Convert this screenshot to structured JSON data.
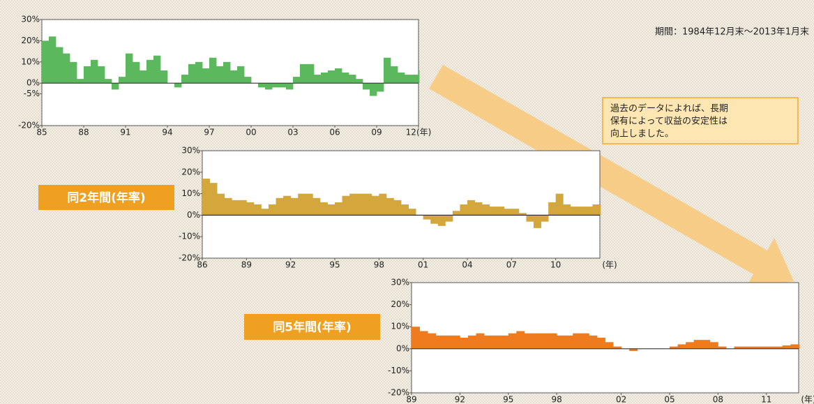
{
  "period": "期間：1984年12月末～2013年1月末",
  "note": [
    "過去のデータによれば、長期",
    "保有によって収益の安定性は",
    "向上しました。"
  ],
  "chart_data": [
    {
      "type": "area",
      "color": "#5cb85c",
      "x": [
        1985,
        1985.5,
        1986,
        1986.5,
        1987,
        1987.5,
        1988,
        1988.5,
        1989,
        1989.5,
        1990,
        1990.5,
        1991,
        1991.5,
        1992,
        1992.5,
        1993,
        1993.5,
        1994,
        1994.5,
        1995,
        1995.5,
        1996,
        1996.5,
        1997,
        1997.5,
        1998,
        1998.5,
        1999,
        1999.5,
        2000,
        2000.5,
        2001,
        2001.5,
        2002,
        2002.5,
        2003,
        2003.5,
        2004,
        2004.5,
        2005,
        2005.5,
        2006,
        2006.5,
        2007,
        2007.5,
        2008,
        2008.5,
        2009,
        2009.5,
        2010,
        2010.5,
        2011,
        2011.5,
        2012
      ],
      "values": [
        20,
        22,
        17,
        14,
        10,
        2,
        8,
        11,
        8,
        2,
        -3,
        3,
        14,
        10,
        6,
        11,
        13,
        6,
        0,
        -2,
        4,
        9,
        10,
        7,
        12,
        8,
        10,
        6,
        8,
        3,
        0,
        -2,
        -3,
        -2,
        -2,
        -3,
        3,
        9,
        9,
        4,
        5,
        6,
        7,
        5,
        4,
        2,
        -3,
        -6,
        -4,
        12,
        8,
        5,
        4,
        4,
        6
      ],
      "xlim": [
        1985,
        2012
      ],
      "ylim": [
        -20,
        30
      ],
      "xticks": [
        {
          "value": 1985,
          "label": "85"
        },
        {
          "value": 1988,
          "label": "88"
        },
        {
          "value": 1991,
          "label": "91"
        },
        {
          "value": 1994,
          "label": "94"
        },
        {
          "value": 1997,
          "label": "97"
        },
        {
          "value": 2000,
          "label": "00"
        },
        {
          "value": 2003,
          "label": "03"
        },
        {
          "value": 2006,
          "label": "06"
        },
        {
          "value": 2009,
          "label": "09"
        },
        {
          "value": 2012,
          "label": "12(年)"
        }
      ],
      "yticks": [
        {
          "value": -20,
          "label": "-20%"
        },
        {
          "value": -5,
          "label": "-5%"
        },
        {
          "value": 0,
          "label": "0%"
        },
        {
          "value": 10,
          "label": "10%"
        },
        {
          "value": 20,
          "label": "20%"
        },
        {
          "value": 30,
          "label": "30%"
        }
      ]
    },
    {
      "type": "area",
      "color": "#d4a73c",
      "label": "同2年間(年率)",
      "x_unit": "(年)",
      "x": [
        1986,
        1986.5,
        1987,
        1987.5,
        1988,
        1988.5,
        1989,
        1989.5,
        1990,
        1990.5,
        1991,
        1991.5,
        1992,
        1992.5,
        1993,
        1993.5,
        1994,
        1994.5,
        1995,
        1995.5,
        1996,
        1996.5,
        1997,
        1997.5,
        1998,
        1998.5,
        1999,
        1999.5,
        2000,
        2000.5,
        2001,
        2001.5,
        2002,
        2002.5,
        2003,
        2003.5,
        2004,
        2004.5,
        2005,
        2005.5,
        2006,
        2006.5,
        2007,
        2007.5,
        2008,
        2008.5,
        2009,
        2009.5,
        2010,
        2010.5,
        2011,
        2011.5,
        2012,
        2012.5,
        2013
      ],
      "values": [
        17,
        15,
        10,
        8,
        7,
        7,
        6,
        5,
        3,
        5,
        8,
        9,
        8,
        10,
        10,
        8,
        6,
        5,
        6,
        9,
        10,
        10,
        10,
        9,
        10,
        8,
        7,
        5,
        3,
        0,
        -2,
        -4,
        -5,
        -3,
        2,
        5,
        7,
        6,
        5,
        4,
        4,
        3,
        3,
        1,
        -3,
        -6,
        -3,
        6,
        10,
        5,
        4,
        4,
        4,
        5,
        5
      ],
      "xlim": [
        1986,
        2013
      ],
      "ylim": [
        -20,
        30
      ],
      "xticks": [
        {
          "value": 1986,
          "label": "86"
        },
        {
          "value": 1989,
          "label": "89"
        },
        {
          "value": 1992,
          "label": "92"
        },
        {
          "value": 1995,
          "label": "95"
        },
        {
          "value": 1998,
          "label": "98"
        },
        {
          "value": 2001,
          "label": "01"
        },
        {
          "value": 2004,
          "label": "04"
        },
        {
          "value": 2007,
          "label": "07"
        },
        {
          "value": 2010,
          "label": "10"
        }
      ],
      "yticks": [
        {
          "value": -20,
          "label": "-20%"
        },
        {
          "value": -10,
          "label": "-10%"
        },
        {
          "value": 0,
          "label": "0%"
        },
        {
          "value": 10,
          "label": "10%"
        },
        {
          "value": 20,
          "label": "20%"
        },
        {
          "value": 30,
          "label": "30%"
        }
      ]
    },
    {
      "type": "area",
      "color": "#f07a1e",
      "label": "同5年間(年率)",
      "x_unit": "(年)",
      "x": [
        1989,
        1989.5,
        1990,
        1990.5,
        1991,
        1991.5,
        1992,
        1992.5,
        1993,
        1993.5,
        1994,
        1994.5,
        1995,
        1995.5,
        1996,
        1996.5,
        1997,
        1997.5,
        1998,
        1998.5,
        1999,
        1999.5,
        2000,
        2000.5,
        2001,
        2001.5,
        2002,
        2002.5,
        2003,
        2003.5,
        2004,
        2004.5,
        2005,
        2005.5,
        2006,
        2006.5,
        2007,
        2007.5,
        2008,
        2008.5,
        2009,
        2009.5,
        2010,
        2010.5,
        2011,
        2011.5,
        2012,
        2012.5,
        2013
      ],
      "values": [
        10,
        8,
        7,
        6,
        6,
        6,
        5,
        6,
        7,
        6,
        6,
        6,
        7,
        8,
        7,
        7,
        7,
        7,
        6,
        6,
        7,
        7,
        6,
        5,
        3,
        1,
        0,
        -1,
        0,
        0,
        0,
        0,
        1,
        2,
        3,
        4,
        4,
        3,
        1,
        0,
        1,
        1,
        1,
        1,
        1,
        1,
        1.5,
        2,
        2
      ],
      "xlim": [
        1989,
        2013
      ],
      "ylim": [
        -20,
        30
      ],
      "xticks": [
        {
          "value": 1989,
          "label": "89"
        },
        {
          "value": 1992,
          "label": "92"
        },
        {
          "value": 1995,
          "label": "95"
        },
        {
          "value": 1998,
          "label": "98"
        },
        {
          "value": 2002,
          "label": "02"
        },
        {
          "value": 2005,
          "label": "05"
        },
        {
          "value": 2008,
          "label": "08"
        },
        {
          "value": 2011,
          "label": "11"
        }
      ],
      "yticks": [
        {
          "value": -20,
          "label": "-20%"
        },
        {
          "value": -10,
          "label": "-10%"
        },
        {
          "value": 0,
          "label": "0%"
        },
        {
          "value": 10,
          "label": "10%"
        },
        {
          "value": 20,
          "label": "20%"
        },
        {
          "value": 30,
          "label": "30%"
        }
      ]
    }
  ]
}
